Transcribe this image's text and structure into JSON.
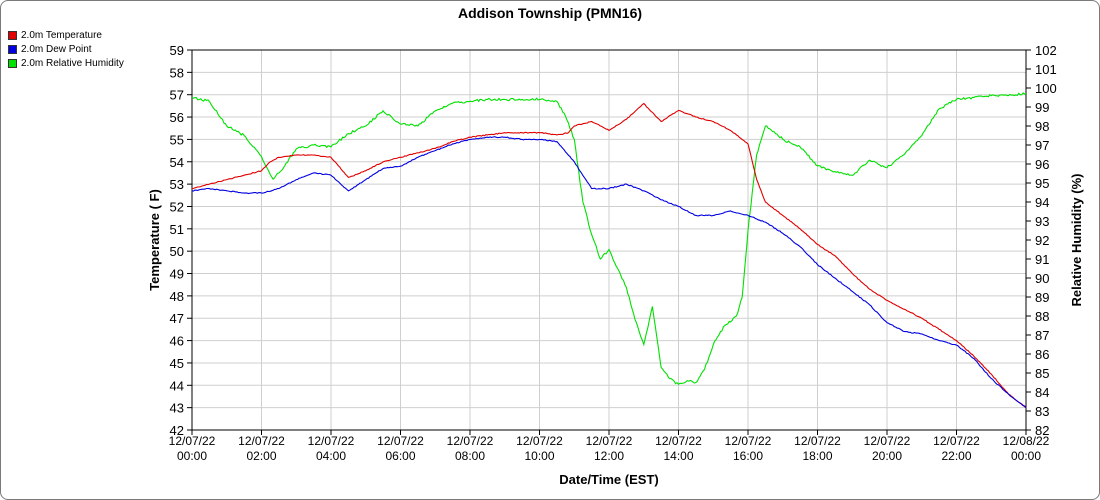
{
  "chart_data": {
    "type": "line",
    "title": "Addison Township (PMN16)",
    "xlabel": "Date/Time (EST)",
    "ylabel": "Temperature ( F)",
    "y2label": "Relative Humidity (%)",
    "ylim": [
      42,
      59
    ],
    "y2lim": [
      82,
      102
    ],
    "grid": true,
    "legend_position": "top-left",
    "x_ticks": [
      {
        "date": "12/07/22",
        "time": "00:00"
      },
      {
        "date": "12/07/22",
        "time": "02:00"
      },
      {
        "date": "12/07/22",
        "time": "04:00"
      },
      {
        "date": "12/07/22",
        "time": "06:00"
      },
      {
        "date": "12/07/22",
        "time": "08:00"
      },
      {
        "date": "12/07/22",
        "time": "10:00"
      },
      {
        "date": "12/07/22",
        "time": "12:00"
      },
      {
        "date": "12/07/22",
        "time": "14:00"
      },
      {
        "date": "12/07/22",
        "time": "16:00"
      },
      {
        "date": "12/07/22",
        "time": "18:00"
      },
      {
        "date": "12/07/22",
        "time": "20:00"
      },
      {
        "date": "12/07/22",
        "time": "22:00"
      },
      {
        "date": "12/08/22",
        "time": "00:00"
      }
    ],
    "y_ticks": [
      42,
      43,
      44,
      45,
      46,
      47,
      48,
      49,
      50,
      51,
      52,
      53,
      54,
      55,
      56,
      57,
      58,
      59
    ],
    "y2_ticks": [
      82,
      83,
      84,
      85,
      86,
      87,
      88,
      89,
      90,
      91,
      92,
      93,
      94,
      95,
      96,
      97,
      98,
      99,
      100,
      101,
      102
    ],
    "series": [
      {
        "name": "2.0m Temperature",
        "color": "#e00000",
        "axis": "left",
        "x": [
          "12/07/22 00:00",
          "12/07/22 00:30",
          "12/07/22 01:00",
          "12/07/22 01:30",
          "12/07/22 02:00",
          "12/07/22 02:15",
          "12/07/22 02:30",
          "12/07/22 03:00",
          "12/07/22 03:30",
          "12/07/22 04:00",
          "12/07/22 04:30",
          "12/07/22 05:00",
          "12/07/22 05:30",
          "12/07/22 06:00",
          "12/07/22 06:30",
          "12/07/22 07:00",
          "12/07/22 07:30",
          "12/07/22 08:00",
          "12/07/22 08:30",
          "12/07/22 09:00",
          "12/07/22 09:30",
          "12/07/22 10:00",
          "12/07/22 10:30",
          "12/07/22 10:50",
          "12/07/22 11:00",
          "12/07/22 11:30",
          "12/07/22 12:00",
          "12/07/22 12:30",
          "12/07/22 13:00",
          "12/07/22 13:30",
          "12/07/22 14:00",
          "12/07/22 14:30",
          "12/07/22 15:00",
          "12/07/22 15:30",
          "12/07/22 16:00",
          "12/07/22 16:15",
          "12/07/22 16:30",
          "12/07/22 17:00",
          "12/07/22 17:30",
          "12/07/22 18:00",
          "12/07/22 18:30",
          "12/07/22 19:00",
          "12/07/22 19:30",
          "12/07/22 20:00",
          "12/07/22 20:30",
          "12/07/22 21:00",
          "12/07/22 21:30",
          "12/07/22 22:00",
          "12/07/22 22:30",
          "12/07/22 23:00",
          "12/07/22 23:30",
          "12/08/22 00:00"
        ],
        "y": [
          52.8,
          53.0,
          53.2,
          53.4,
          53.6,
          54.0,
          54.2,
          54.3,
          54.3,
          54.2,
          53.3,
          53.6,
          54.0,
          54.2,
          54.4,
          54.6,
          54.9,
          55.1,
          55.2,
          55.3,
          55.3,
          55.3,
          55.2,
          55.3,
          55.6,
          55.8,
          55.4,
          55.9,
          56.6,
          55.8,
          56.3,
          56.0,
          55.8,
          55.4,
          54.8,
          53.2,
          52.2,
          51.6,
          51.0,
          50.3,
          49.8,
          49.0,
          48.3,
          47.8,
          47.4,
          47.0,
          46.5,
          46.0,
          45.3,
          44.5,
          43.6,
          43.0
        ]
      },
      {
        "name": "2.0m Dew Point",
        "color": "#0000e0",
        "axis": "left",
        "x": [
          "12/07/22 00:00",
          "12/07/22 00:30",
          "12/07/22 01:00",
          "12/07/22 01:30",
          "12/07/22 02:00",
          "12/07/22 02:30",
          "12/07/22 03:00",
          "12/07/22 03:30",
          "12/07/22 04:00",
          "12/07/22 04:30",
          "12/07/22 05:00",
          "12/07/22 05:30",
          "12/07/22 06:00",
          "12/07/22 06:30",
          "12/07/22 07:00",
          "12/07/22 07:30",
          "12/07/22 08:00",
          "12/07/22 08:30",
          "12/07/22 09:00",
          "12/07/22 09:30",
          "12/07/22 10:00",
          "12/07/22 10:30",
          "12/07/22 11:00",
          "12/07/22 11:30",
          "12/07/22 12:00",
          "12/07/22 12:30",
          "12/07/22 13:00",
          "12/07/22 13:30",
          "12/07/22 14:00",
          "12/07/22 14:30",
          "12/07/22 15:00",
          "12/07/22 15:30",
          "12/07/22 16:00",
          "12/07/22 16:30",
          "12/07/22 17:00",
          "12/07/22 17:30",
          "12/07/22 18:00",
          "12/07/22 18:30",
          "12/07/22 19:00",
          "12/07/22 19:30",
          "12/07/22 20:00",
          "12/07/22 20:30",
          "12/07/22 21:00",
          "12/07/22 21:30",
          "12/07/22 22:00",
          "12/07/22 22:30",
          "12/07/22 23:00",
          "12/07/22 23:30",
          "12/08/22 00:00"
        ],
        "y": [
          52.7,
          52.8,
          52.7,
          52.6,
          52.6,
          52.8,
          53.2,
          53.5,
          53.4,
          52.7,
          53.2,
          53.7,
          53.8,
          54.2,
          54.5,
          54.8,
          55.0,
          55.1,
          55.1,
          55.0,
          55.0,
          54.9,
          54.0,
          52.8,
          52.8,
          53.0,
          52.7,
          52.3,
          52.0,
          51.6,
          51.6,
          51.8,
          51.6,
          51.3,
          50.8,
          50.2,
          49.4,
          48.8,
          48.2,
          47.6,
          46.8,
          46.4,
          46.3,
          46.0,
          45.8,
          45.2,
          44.3,
          43.6,
          43.0
        ]
      },
      {
        "name": "2.0m Relative Humidity",
        "color": "#00e000",
        "axis": "right",
        "x": [
          "12/07/22 00:00",
          "12/07/22 00:30",
          "12/07/22 01:00",
          "12/07/22 01:30",
          "12/07/22 02:00",
          "12/07/22 02:20",
          "12/07/22 02:40",
          "12/07/22 03:00",
          "12/07/22 03:30",
          "12/07/22 04:00",
          "12/07/22 04:30",
          "12/07/22 05:00",
          "12/07/22 05:30",
          "12/07/22 06:00",
          "12/07/22 06:30",
          "12/07/22 07:00",
          "12/07/22 07:30",
          "12/07/22 08:00",
          "12/07/22 08:30",
          "12/07/22 09:00",
          "12/07/22 09:30",
          "12/07/22 10:00",
          "12/07/22 10:30",
          "12/07/22 10:45",
          "12/07/22 11:00",
          "12/07/22 11:15",
          "12/07/22 11:30",
          "12/07/22 11:45",
          "12/07/22 12:00",
          "12/07/22 12:15",
          "12/07/22 12:30",
          "12/07/22 12:45",
          "12/07/22 13:00",
          "12/07/22 13:15",
          "12/07/22 13:30",
          "12/07/22 13:45",
          "12/07/22 14:00",
          "12/07/22 14:15",
          "12/07/22 14:30",
          "12/07/22 14:45",
          "12/07/22 15:00",
          "12/07/22 15:20",
          "12/07/22 15:40",
          "12/07/22 15:50",
          "12/07/22 16:00",
          "12/07/22 16:15",
          "12/07/22 16:30",
          "12/07/22 16:45",
          "12/07/22 17:00",
          "12/07/22 17:30",
          "12/07/22 18:00",
          "12/07/22 18:30",
          "12/07/22 19:00",
          "12/07/22 19:30",
          "12/07/22 20:00",
          "12/07/22 20:30",
          "12/07/22 21:00",
          "12/07/22 21:30",
          "12/07/22 22:00",
          "12/07/22 22:30",
          "12/07/22 23:00",
          "12/07/22 23:30",
          "12/08/22 00:00"
        ],
        "y": [
          99.5,
          99.3,
          98.0,
          97.5,
          96.4,
          95.2,
          95.9,
          96.8,
          97.0,
          96.9,
          97.6,
          98.0,
          98.8,
          98.1,
          98.0,
          98.8,
          99.2,
          99.3,
          99.4,
          99.4,
          99.4,
          99.4,
          99.3,
          98.5,
          97.3,
          94.0,
          92.3,
          91.0,
          91.5,
          90.5,
          89.5,
          87.8,
          86.5,
          88.5,
          85.3,
          84.7,
          84.4,
          84.6,
          84.5,
          85.2,
          86.5,
          87.5,
          88.0,
          89.0,
          92.5,
          96.5,
          98.0,
          97.7,
          97.3,
          96.9,
          95.9,
          95.6,
          95.4,
          96.2,
          95.8,
          96.5,
          97.5,
          98.9,
          99.4,
          99.5,
          99.6,
          99.6,
          99.7
        ]
      }
    ]
  }
}
